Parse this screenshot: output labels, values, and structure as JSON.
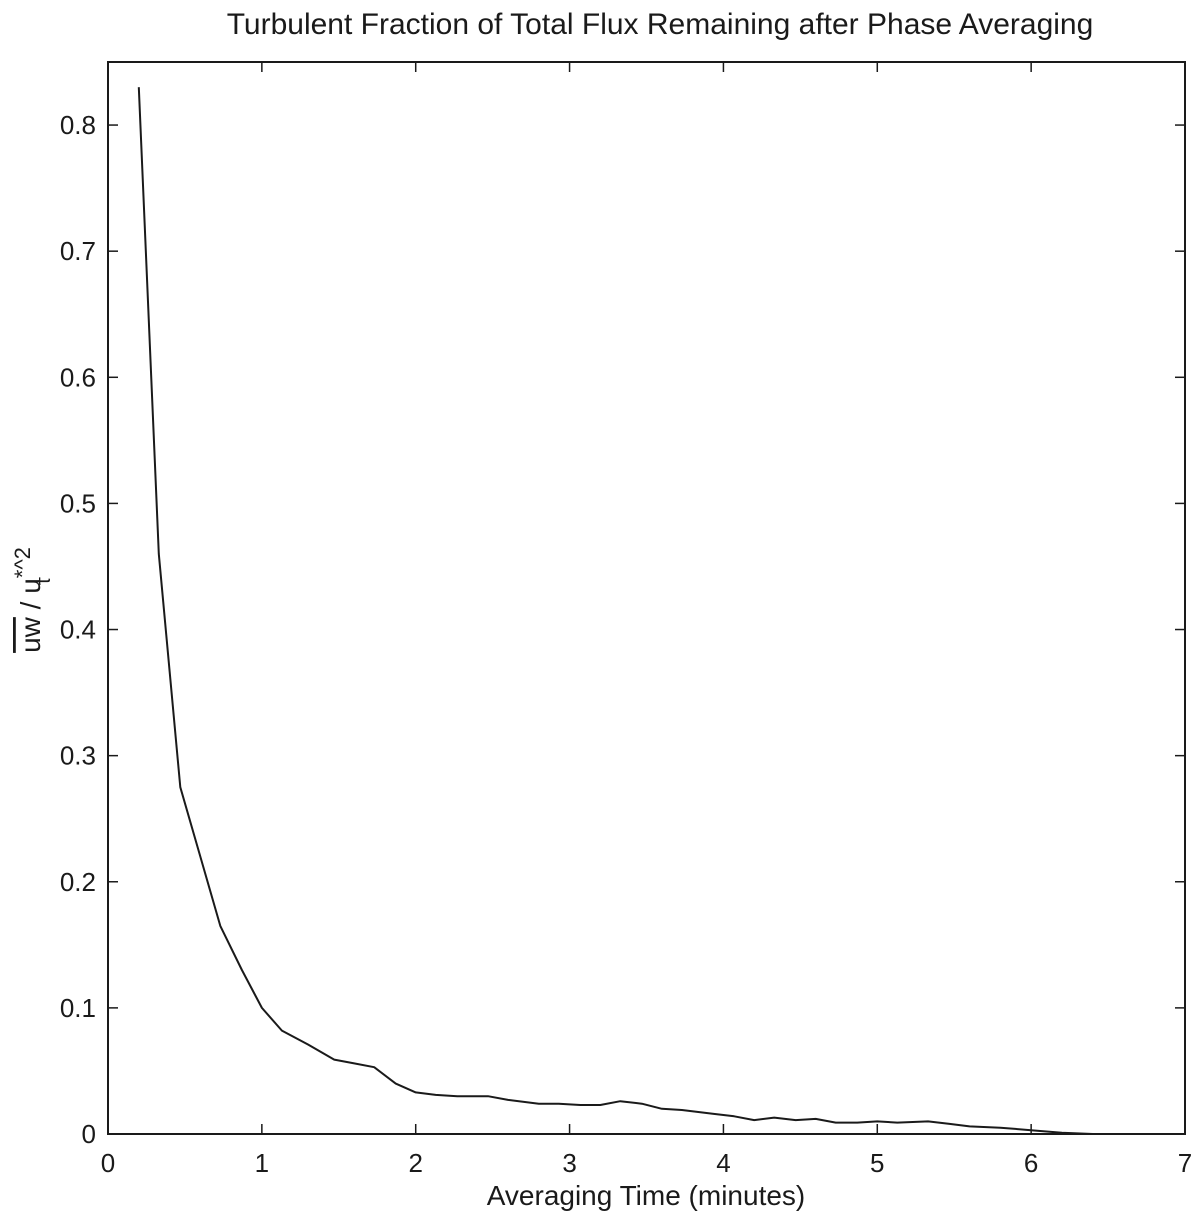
{
  "chart_data": {
    "type": "line",
    "title": "Turbulent Fraction of Total Flux Remaining after Phase Averaging",
    "xlabel": "Averaging Time (minutes)",
    "ylabel": "uw / u*^2",
    "ylabel_parts": {
      "base": "uw",
      "sep": " / u",
      "sup": "*^2",
      "sub": "τ"
    },
    "xlim": [
      0,
      7
    ],
    "ylim": [
      0,
      0.85
    ],
    "xticks": [
      0,
      1,
      2,
      3,
      4,
      5,
      6,
      7
    ],
    "xtick_labels": [
      "0",
      "1",
      "2",
      "3",
      "4",
      "5",
      "6",
      "7"
    ],
    "yticks": [
      0,
      0.1,
      0.2,
      0.3,
      0.4,
      0.5,
      0.6,
      0.7,
      0.8
    ],
    "ytick_labels": [
      "0",
      "0.1",
      "0.2",
      "0.3",
      "0.4",
      "0.5",
      "0.6",
      "0.7",
      "0.8"
    ],
    "grid": false,
    "series": [
      {
        "x": [
          0.2,
          0.33,
          0.47,
          0.6,
          0.73,
          0.87,
          1.0,
          1.13,
          1.3,
          1.47,
          1.6,
          1.73,
          1.87,
          2.0,
          2.13,
          2.27,
          2.47,
          2.6,
          2.8,
          2.93,
          3.07,
          3.2,
          3.33,
          3.47,
          3.6,
          3.73,
          3.93,
          4.07,
          4.2,
          4.33,
          4.47,
          4.6,
          4.73,
          4.87,
          5.0,
          5.13,
          5.33,
          5.47,
          5.6,
          5.8,
          6.0,
          6.2,
          6.4,
          6.6,
          6.8
        ],
        "y": [
          0.83,
          0.46,
          0.275,
          0.22,
          0.165,
          0.13,
          0.1,
          0.082,
          0.071,
          0.059,
          0.056,
          0.053,
          0.04,
          0.033,
          0.031,
          0.03,
          0.03,
          0.027,
          0.024,
          0.024,
          0.023,
          0.023,
          0.026,
          0.024,
          0.02,
          0.019,
          0.016,
          0.014,
          0.011,
          0.013,
          0.011,
          0.012,
          0.009,
          0.009,
          0.01,
          0.009,
          0.01,
          0.008,
          0.006,
          0.005,
          0.003,
          0.001,
          0.0,
          0.0,
          0.0
        ]
      }
    ]
  }
}
